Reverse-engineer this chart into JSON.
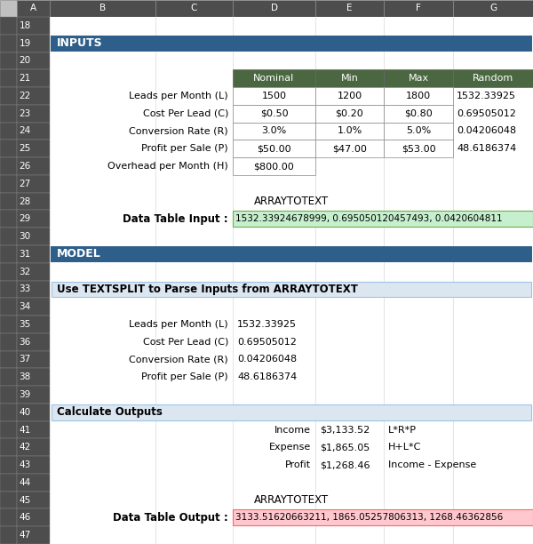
{
  "fig_width": 6.0,
  "fig_height": 6.12,
  "dpi": 100,
  "col_header_bg": "#4a6741",
  "col_header_fg": "#ffffff",
  "section_header_bg": "#2e5f8a",
  "section_header_fg": "#ffffff",
  "subsection_bg": "#dce6f1",
  "subsection_fg": "#000000",
  "input_highlight_bg": "#c6efce",
  "output_highlight_bg": "#ffc7ce",
  "grid_bg": "#4d4d4d",
  "grid_fg": "#ffffff",
  "cell_border": "#c0c0c0",
  "col_labels": [
    "Nominal",
    "Min",
    "Max",
    "Random"
  ],
  "row_labels": [
    "Leads per Month (L)",
    "Cost Per Lead (C)",
    "Conversion Rate (R)",
    "Profit per Sale (P)",
    "Overhead per Month (H)"
  ],
  "nominal_vals": [
    "1500",
    "$0.50",
    "3.0%",
    "$50.00",
    "$800.00"
  ],
  "min_vals": [
    "1200",
    "$0.20",
    "1.0%",
    "$47.00",
    ""
  ],
  "max_vals": [
    "1800",
    "$0.80",
    "5.0%",
    "$53.00",
    ""
  ],
  "random_vals": [
    "1532.33925",
    "0.69505012",
    "0.04206048",
    "48.6186374",
    ""
  ],
  "arraytotext_input_label": "ARRAYTOTEXT",
  "datatable_input_label": "Data Table Input :",
  "datatable_input_value": "1532.33924678999, 0.695050120457493, 0.0420604811",
  "section_inputs_label": "INPUTS",
  "section_model_label": "MODEL",
  "textsplit_label": "Use TEXTSPLIT to Parse Inputs from ARRAYTOTEXT",
  "parsed_labels": [
    "Leads per Month (L)",
    "Cost Per Lead (C)",
    "Conversion Rate (R)",
    "Profit per Sale (P)"
  ],
  "parsed_values": [
    "1532.33925",
    "0.69505012",
    "0.04206048",
    "48.6186374"
  ],
  "calc_label": "Calculate Outputs",
  "calc_rows": [
    [
      "Income",
      "$3,133.52",
      "L*R*P"
    ],
    [
      "Expense",
      "$1,865.05",
      "H+L*C"
    ],
    [
      "Profit",
      "$1,268.46",
      "Income - Expense"
    ]
  ],
  "arraytotext_output_label": "ARRAYTOTEXT",
  "datatable_output_label": "Data Table Output :",
  "datatable_output_value": "3133.51620663211, 1865.05257806313, 1268.46362856",
  "row_numbers": [
    "18",
    "19",
    "20",
    "21",
    "22",
    "23",
    "24",
    "25",
    "26",
    "27",
    "28",
    "29",
    "30",
    "31",
    "32",
    "33",
    "34",
    "35",
    "36",
    "37",
    "38",
    "39",
    "40",
    "41",
    "42",
    "43",
    "44",
    "45",
    "46",
    "47"
  ]
}
